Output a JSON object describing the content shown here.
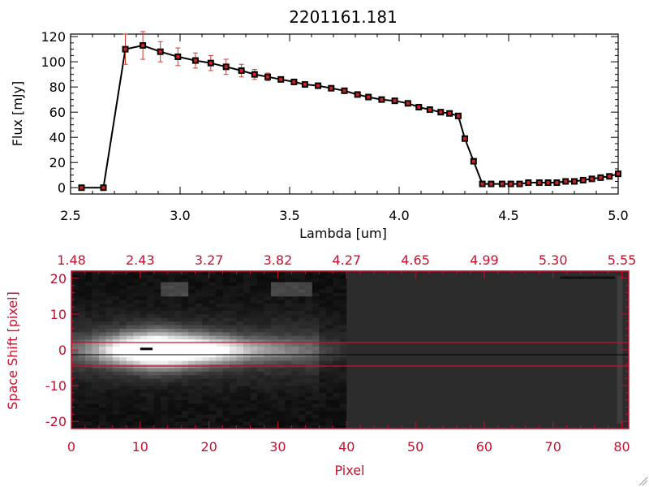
{
  "colors": {
    "axis_black": "#000000",
    "axis_red": "#c8102e",
    "errorbar_red": "#e0302a",
    "marker_red": "#d42020",
    "image_bg": "#2a2a2a"
  },
  "chart_data": [
    {
      "type": "line",
      "title": "2201161.181",
      "xlabel": "Lambda [um]",
      "ylabel": "Flux [mJy]",
      "xlim": [
        2.5,
        5.0
      ],
      "ylim": [
        -5,
        122
      ],
      "xticks": [
        "2.5",
        "3.0",
        "3.5",
        "4.0",
        "4.5",
        "5.0"
      ],
      "yticks": [
        "0",
        "20",
        "40",
        "60",
        "80",
        "100",
        "120"
      ],
      "grid": false,
      "markers": "square",
      "errorbars": true,
      "series": [
        {
          "x": [
            2.55,
            2.65,
            2.75,
            2.83,
            2.91,
            2.99,
            3.07,
            3.14,
            3.21,
            3.28,
            3.34,
            3.4,
            3.46,
            3.52,
            3.57,
            3.63,
            3.69,
            3.75,
            3.81,
            3.86,
            3.92,
            3.98,
            4.04,
            4.09,
            4.14,
            4.19,
            4.23,
            4.27,
            4.3,
            4.34,
            4.38,
            4.42,
            4.47,
            4.51,
            4.55,
            4.59,
            4.64,
            4.68,
            4.72,
            4.76,
            4.8,
            4.84,
            4.88,
            4.92,
            4.96,
            5.0
          ],
          "y": [
            0,
            0,
            110,
            113,
            108,
            104,
            101,
            99,
            96,
            93,
            90,
            88,
            86,
            84,
            82,
            81,
            79,
            77,
            74,
            72,
            70,
            69,
            67,
            64,
            62,
            60,
            59,
            57,
            39,
            21,
            3,
            3,
            3,
            3,
            3,
            4,
            4,
            4,
            4,
            5,
            5,
            6,
            7,
            8,
            9,
            11
          ],
          "err": [
            0,
            0,
            12,
            11,
            8,
            7,
            6,
            6,
            6,
            5,
            4,
            3,
            2,
            2,
            2,
            2,
            2,
            2,
            2,
            2,
            2,
            2,
            2,
            2,
            2,
            2,
            2,
            2,
            2,
            2,
            1,
            1,
            1,
            1,
            1,
            1,
            1,
            1,
            1,
            1,
            1,
            1,
            1,
            1,
            1,
            1
          ]
        }
      ]
    },
    {
      "type": "heatmap",
      "xlabel": "Pixel",
      "ylabel": "Space Shift [pixel]",
      "xlim": [
        0,
        81
      ],
      "ylim": [
        -22,
        22
      ],
      "xticks": [
        "0",
        "10",
        "20",
        "30",
        "40",
        "50",
        "60",
        "70",
        "80"
      ],
      "yticks": [
        "-20",
        "-10",
        "0",
        "10",
        "20"
      ],
      "top_xticks": [
        "1.48",
        "2.43",
        "3.27",
        "3.82",
        "4.27",
        "4.65",
        "4.99",
        "5.30",
        "5.55"
      ],
      "hlines": [
        -3,
        3
      ],
      "trace_line": 0,
      "bright_region": {
        "x_start": 0,
        "x_end": 40
      }
    }
  ]
}
